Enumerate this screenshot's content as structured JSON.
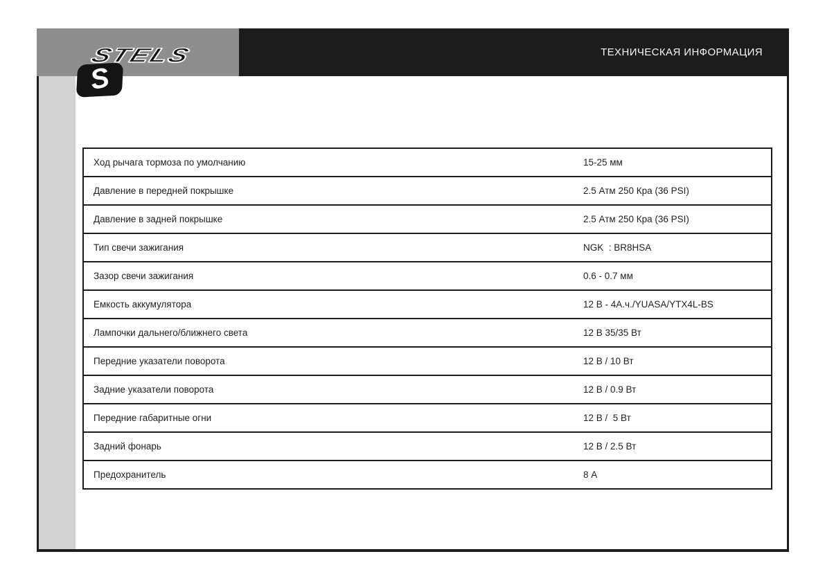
{
  "header": {
    "logo_letter": "S",
    "brand": "STELS",
    "title": "ТЕХНИЧЕСКАЯ ИНФОРМАЦИЯ"
  },
  "table": {
    "rows": [
      {
        "label": "Ход рычага тормоза по умолчанию",
        "value": "15-25 мм"
      },
      {
        "label": "Давление в передней покрышке",
        "value": "2.5 Атм 250 Кра (36 PSI)"
      },
      {
        "label": "Давление в задней покрышке",
        "value": "2.5 Атм 250 Кра (36 PSI)"
      },
      {
        "label": "Тип свечи зажигания",
        "value": "NGK  : BR8HSA"
      },
      {
        "label": "Зазор свечи зажигания",
        "value": "0.6 - 0.7 мм"
      },
      {
        "label": "Емкость аккумулятора",
        "value": "12 В - 4А.ч./YUASA/YTX4L-BS"
      },
      {
        "label": "Лампочки дальнего/ближнего света",
        "value": "12 В 35/35 Вт"
      },
      {
        "label": "Передние указатели поворота",
        "value": "12 В / 10 Вт"
      },
      {
        "label": "Задние указатели поворота",
        "value": "12 В / 0.9 Вт"
      },
      {
        "label": "Передние габаритные огни",
        "value": "12 В /  5 Вт"
      },
      {
        "label": "Задний фонарь",
        "value": "12 В / 2.5 Вт"
      },
      {
        "label": "Предохранитель",
        "value": "8 А"
      }
    ]
  },
  "colors": {
    "ink_black": "#1c1c1c",
    "band_gray": "#8e8e8e",
    "strip_gray": "#d2d2d2",
    "title_text": "#f7f7f7"
  }
}
